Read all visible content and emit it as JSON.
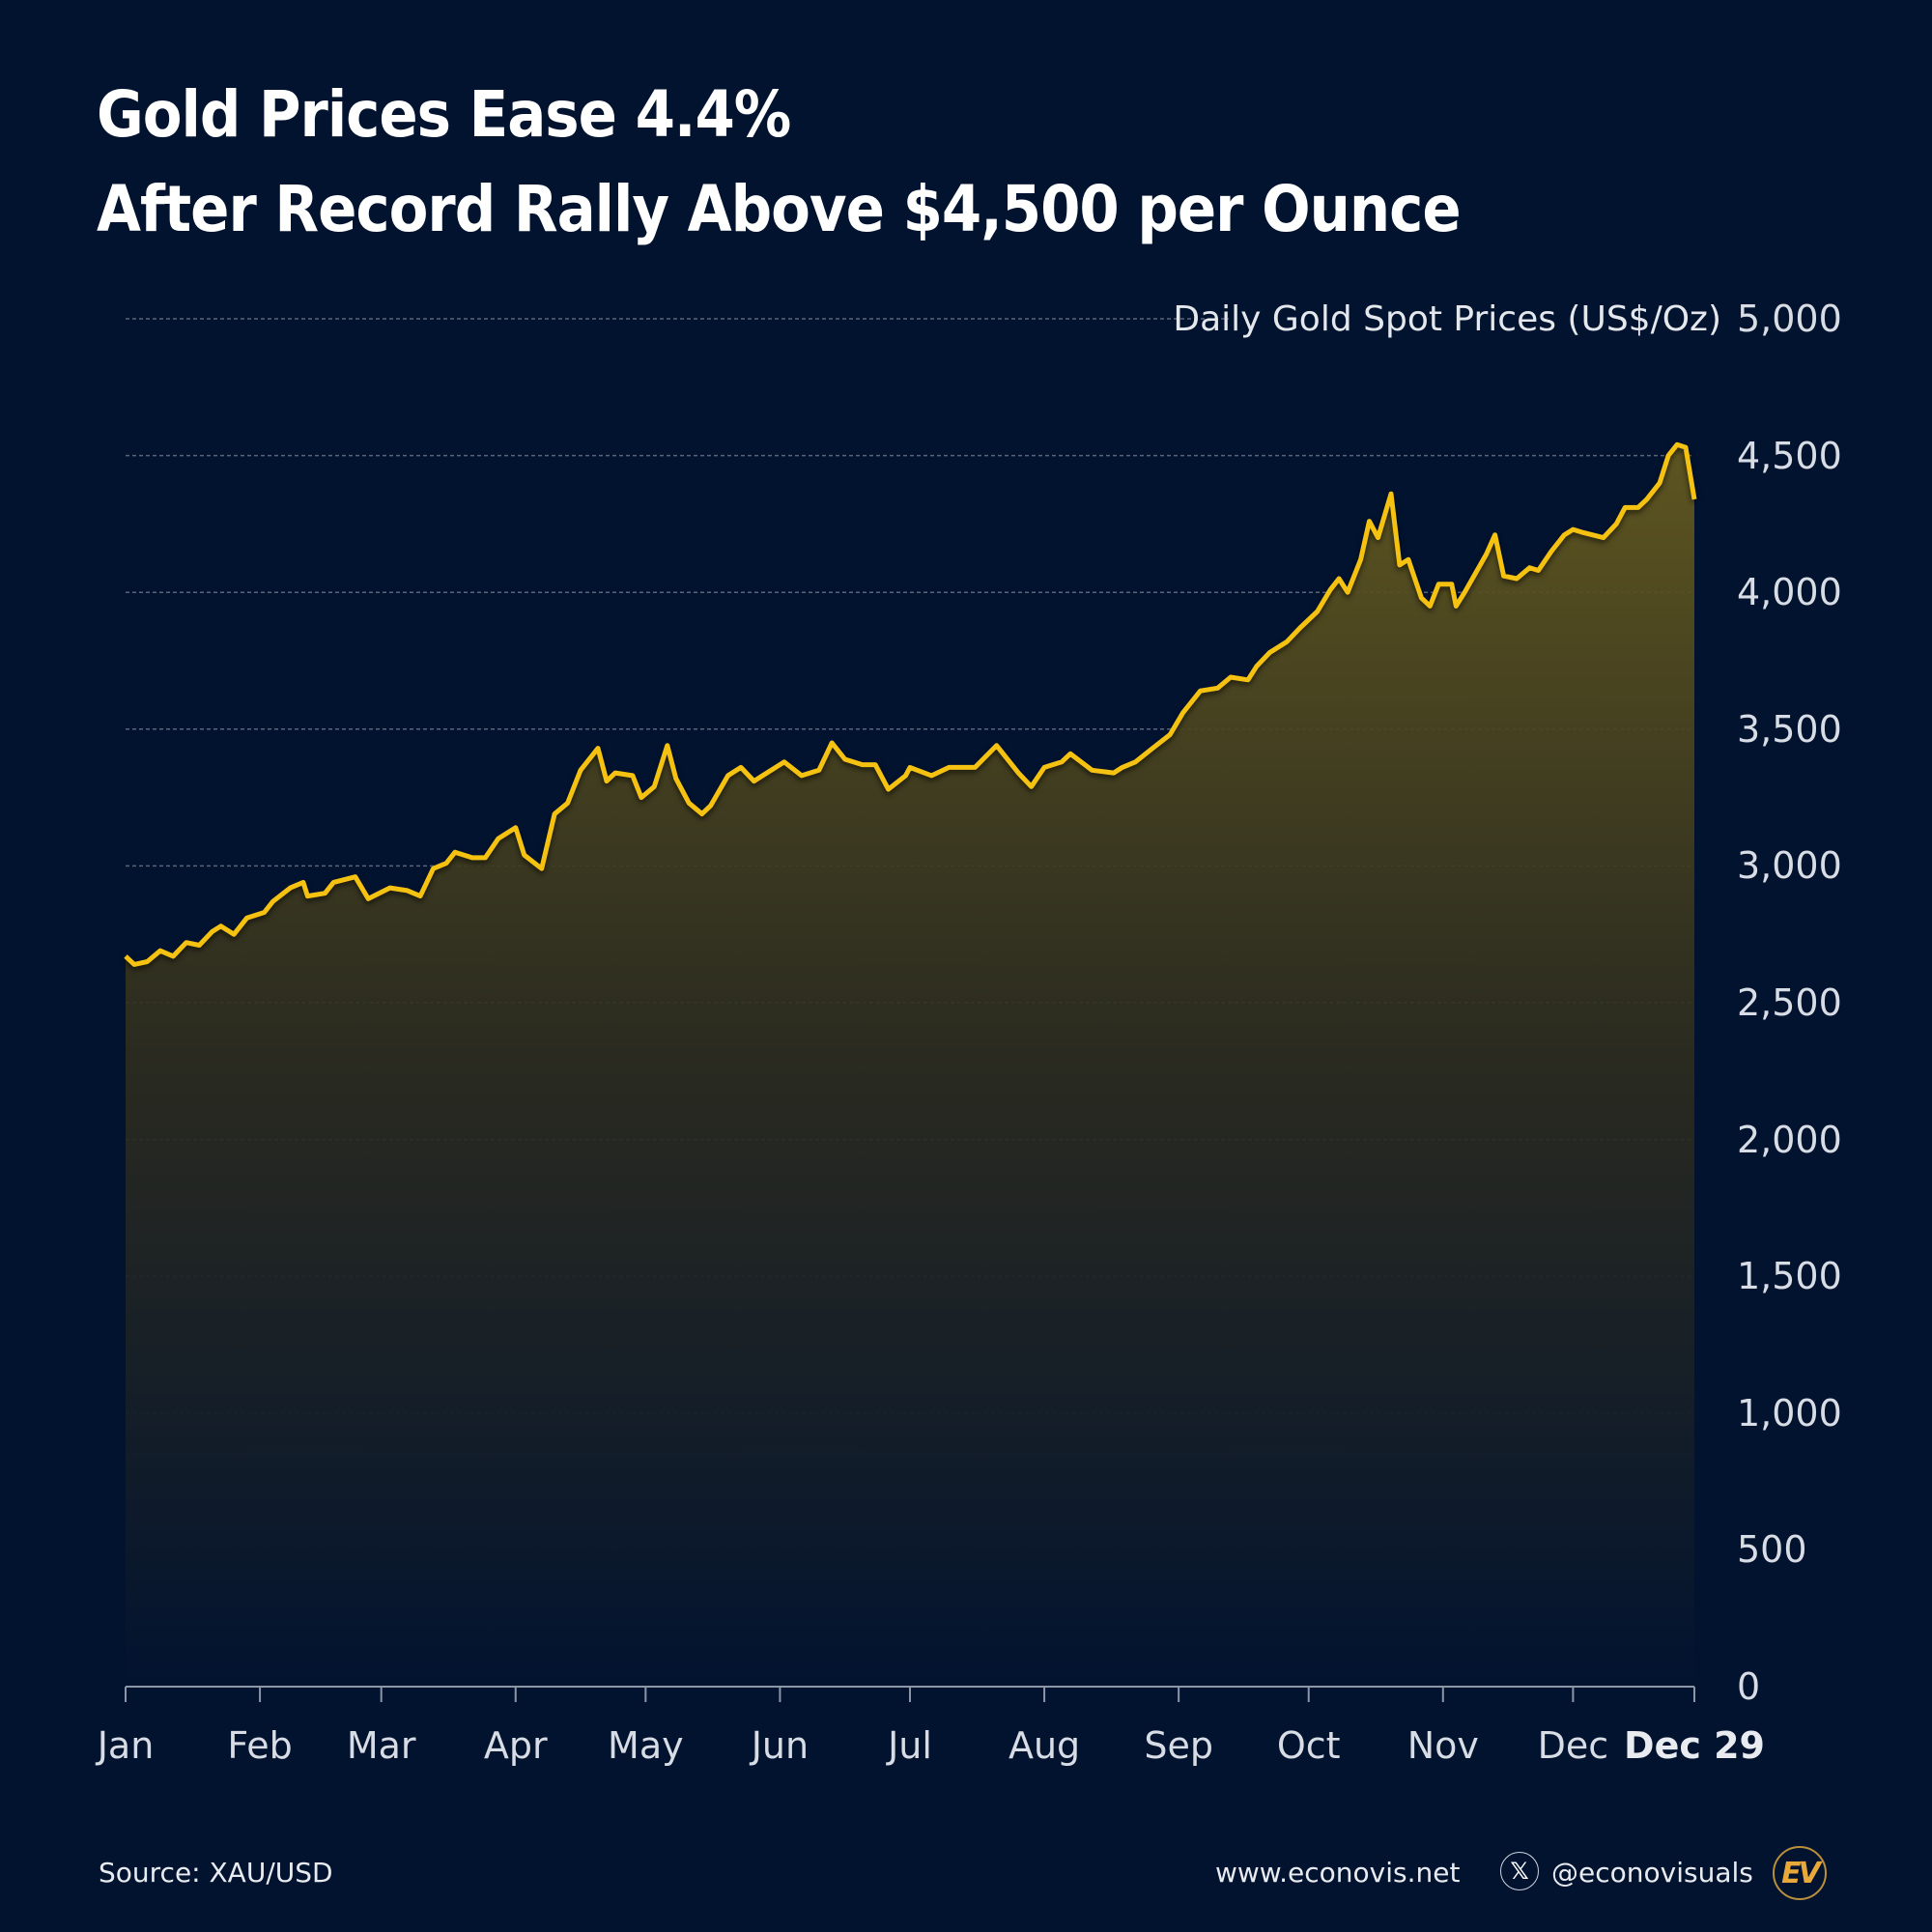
{
  "title": {
    "line1": "Gold Prices Ease 4.4%",
    "line2": "After Record Rally Above $4,500 per Ounce"
  },
  "footer": {
    "source": "Source: XAU/USD",
    "website": "www.econovis.net",
    "handle": "@econovisuals",
    "x_icon": "x-logo-icon",
    "logo": "EV"
  },
  "colors": {
    "background": "#021330",
    "line": "#f5c211",
    "fill_top": "#6e6220",
    "grid": "#5a6478"
  },
  "chart_data": {
    "type": "area",
    "title": "",
    "ylabel": "Daily Gold Spot Prices (US$/Oz)",
    "xlabel": "",
    "ylim": [
      0,
      5000
    ],
    "yticks": [
      "0",
      "500",
      "1,000",
      "1,500",
      "2,000",
      "2,500",
      "3,000",
      "3,500",
      "4,000",
      "4,500",
      "5,000"
    ],
    "ytick_values": [
      0,
      500,
      1000,
      1500,
      2000,
      2500,
      3000,
      3500,
      4000,
      4500,
      5000
    ],
    "xticks": [
      "Jan",
      "Feb",
      "Mar",
      "Apr",
      "May",
      "Jun",
      "Jul",
      "Aug",
      "Sep",
      "Oct",
      "Nov",
      "Dec",
      "Dec 29"
    ],
    "xtick_dates": [
      "01-01",
      "02-01",
      "03-01",
      "04-01",
      "05-01",
      "06-01",
      "07-01",
      "08-01",
      "09-01",
      "10-01",
      "11-01",
      "12-01",
      "12-29"
    ],
    "grid": "horizontal dashed",
    "y_axis_position": "right",
    "series": [
      {
        "x": [
          "01-01",
          "01-03",
          "01-06",
          "01-09",
          "01-12",
          "01-15",
          "01-18",
          "01-21",
          "01-23",
          "01-26",
          "01-29",
          "02-02",
          "02-04",
          "02-08",
          "02-11",
          "02-12",
          "02-16",
          "02-18",
          "02-23",
          "02-26",
          "03-03",
          "03-07",
          "03-10",
          "03-13",
          "03-16",
          "03-18",
          "03-22",
          "03-25",
          "03-28",
          "04-01",
          "04-03",
          "04-07",
          "04-10",
          "04-13",
          "04-16",
          "04-20",
          "04-22",
          "04-24",
          "04-28",
          "04-30",
          "05-03",
          "05-06",
          "05-08",
          "05-11",
          "05-14",
          "05-16",
          "05-20",
          "05-23",
          "05-26",
          "05-28",
          "06-02",
          "06-06",
          "06-10",
          "06-13",
          "06-16",
          "06-20",
          "06-23",
          "06-26",
          "06-30",
          "07-01",
          "07-06",
          "07-10",
          "07-16",
          "07-21",
          "07-26",
          "07-29",
          "08-01",
          "08-05",
          "08-07",
          "08-12",
          "08-17",
          "08-19",
          "08-22",
          "08-26",
          "08-30",
          "09-02",
          "09-06",
          "09-10",
          "09-13",
          "09-17",
          "09-19",
          "09-22",
          "09-26",
          "09-29",
          "10-03",
          "10-06",
          "10-08",
          "10-10",
          "10-13",
          "10-15",
          "10-17",
          "10-20",
          "10-22",
          "10-24",
          "10-27",
          "10-29",
          "10-31",
          "11-03",
          "11-04",
          "11-06",
          "11-11",
          "11-13",
          "11-15",
          "11-18",
          "11-21",
          "11-23",
          "11-26",
          "11-29",
          "12-01",
          "12-03",
          "12-08",
          "12-11",
          "12-13",
          "12-16",
          "12-18",
          "12-21",
          "12-23",
          "12-25",
          "12-27",
          "12-29"
        ],
        "values": [
          2670,
          2640,
          2650,
          2690,
          2670,
          2720,
          2710,
          2760,
          2780,
          2750,
          2810,
          2830,
          2870,
          2920,
          2940,
          2890,
          2900,
          2940,
          2960,
          2880,
          2920,
          2910,
          2890,
          2990,
          3010,
          3050,
          3030,
          3030,
          3100,
          3140,
          3040,
          2990,
          3190,
          3230,
          3350,
          3430,
          3310,
          3340,
          3330,
          3250,
          3290,
          3440,
          3320,
          3230,
          3190,
          3220,
          3330,
          3360,
          3310,
          3330,
          3380,
          3330,
          3350,
          3450,
          3390,
          3370,
          3370,
          3280,
          3330,
          3360,
          3330,
          3360,
          3360,
          3440,
          3340,
          3290,
          3360,
          3380,
          3410,
          3350,
          3340,
          3360,
          3380,
          3430,
          3480,
          3560,
          3640,
          3650,
          3690,
          3680,
          3730,
          3780,
          3820,
          3870,
          3930,
          4010,
          4050,
          4000,
          4120,
          4260,
          4200,
          4360,
          4100,
          4120,
          3980,
          3950,
          4030,
          4030,
          3950,
          4000,
          4140,
          4210,
          4060,
          4050,
          4090,
          4080,
          4150,
          4210,
          4230,
          4220,
          4200,
          4250,
          4310,
          4310,
          4340,
          4400,
          4500,
          4540,
          4530,
          4340
        ]
      }
    ]
  }
}
